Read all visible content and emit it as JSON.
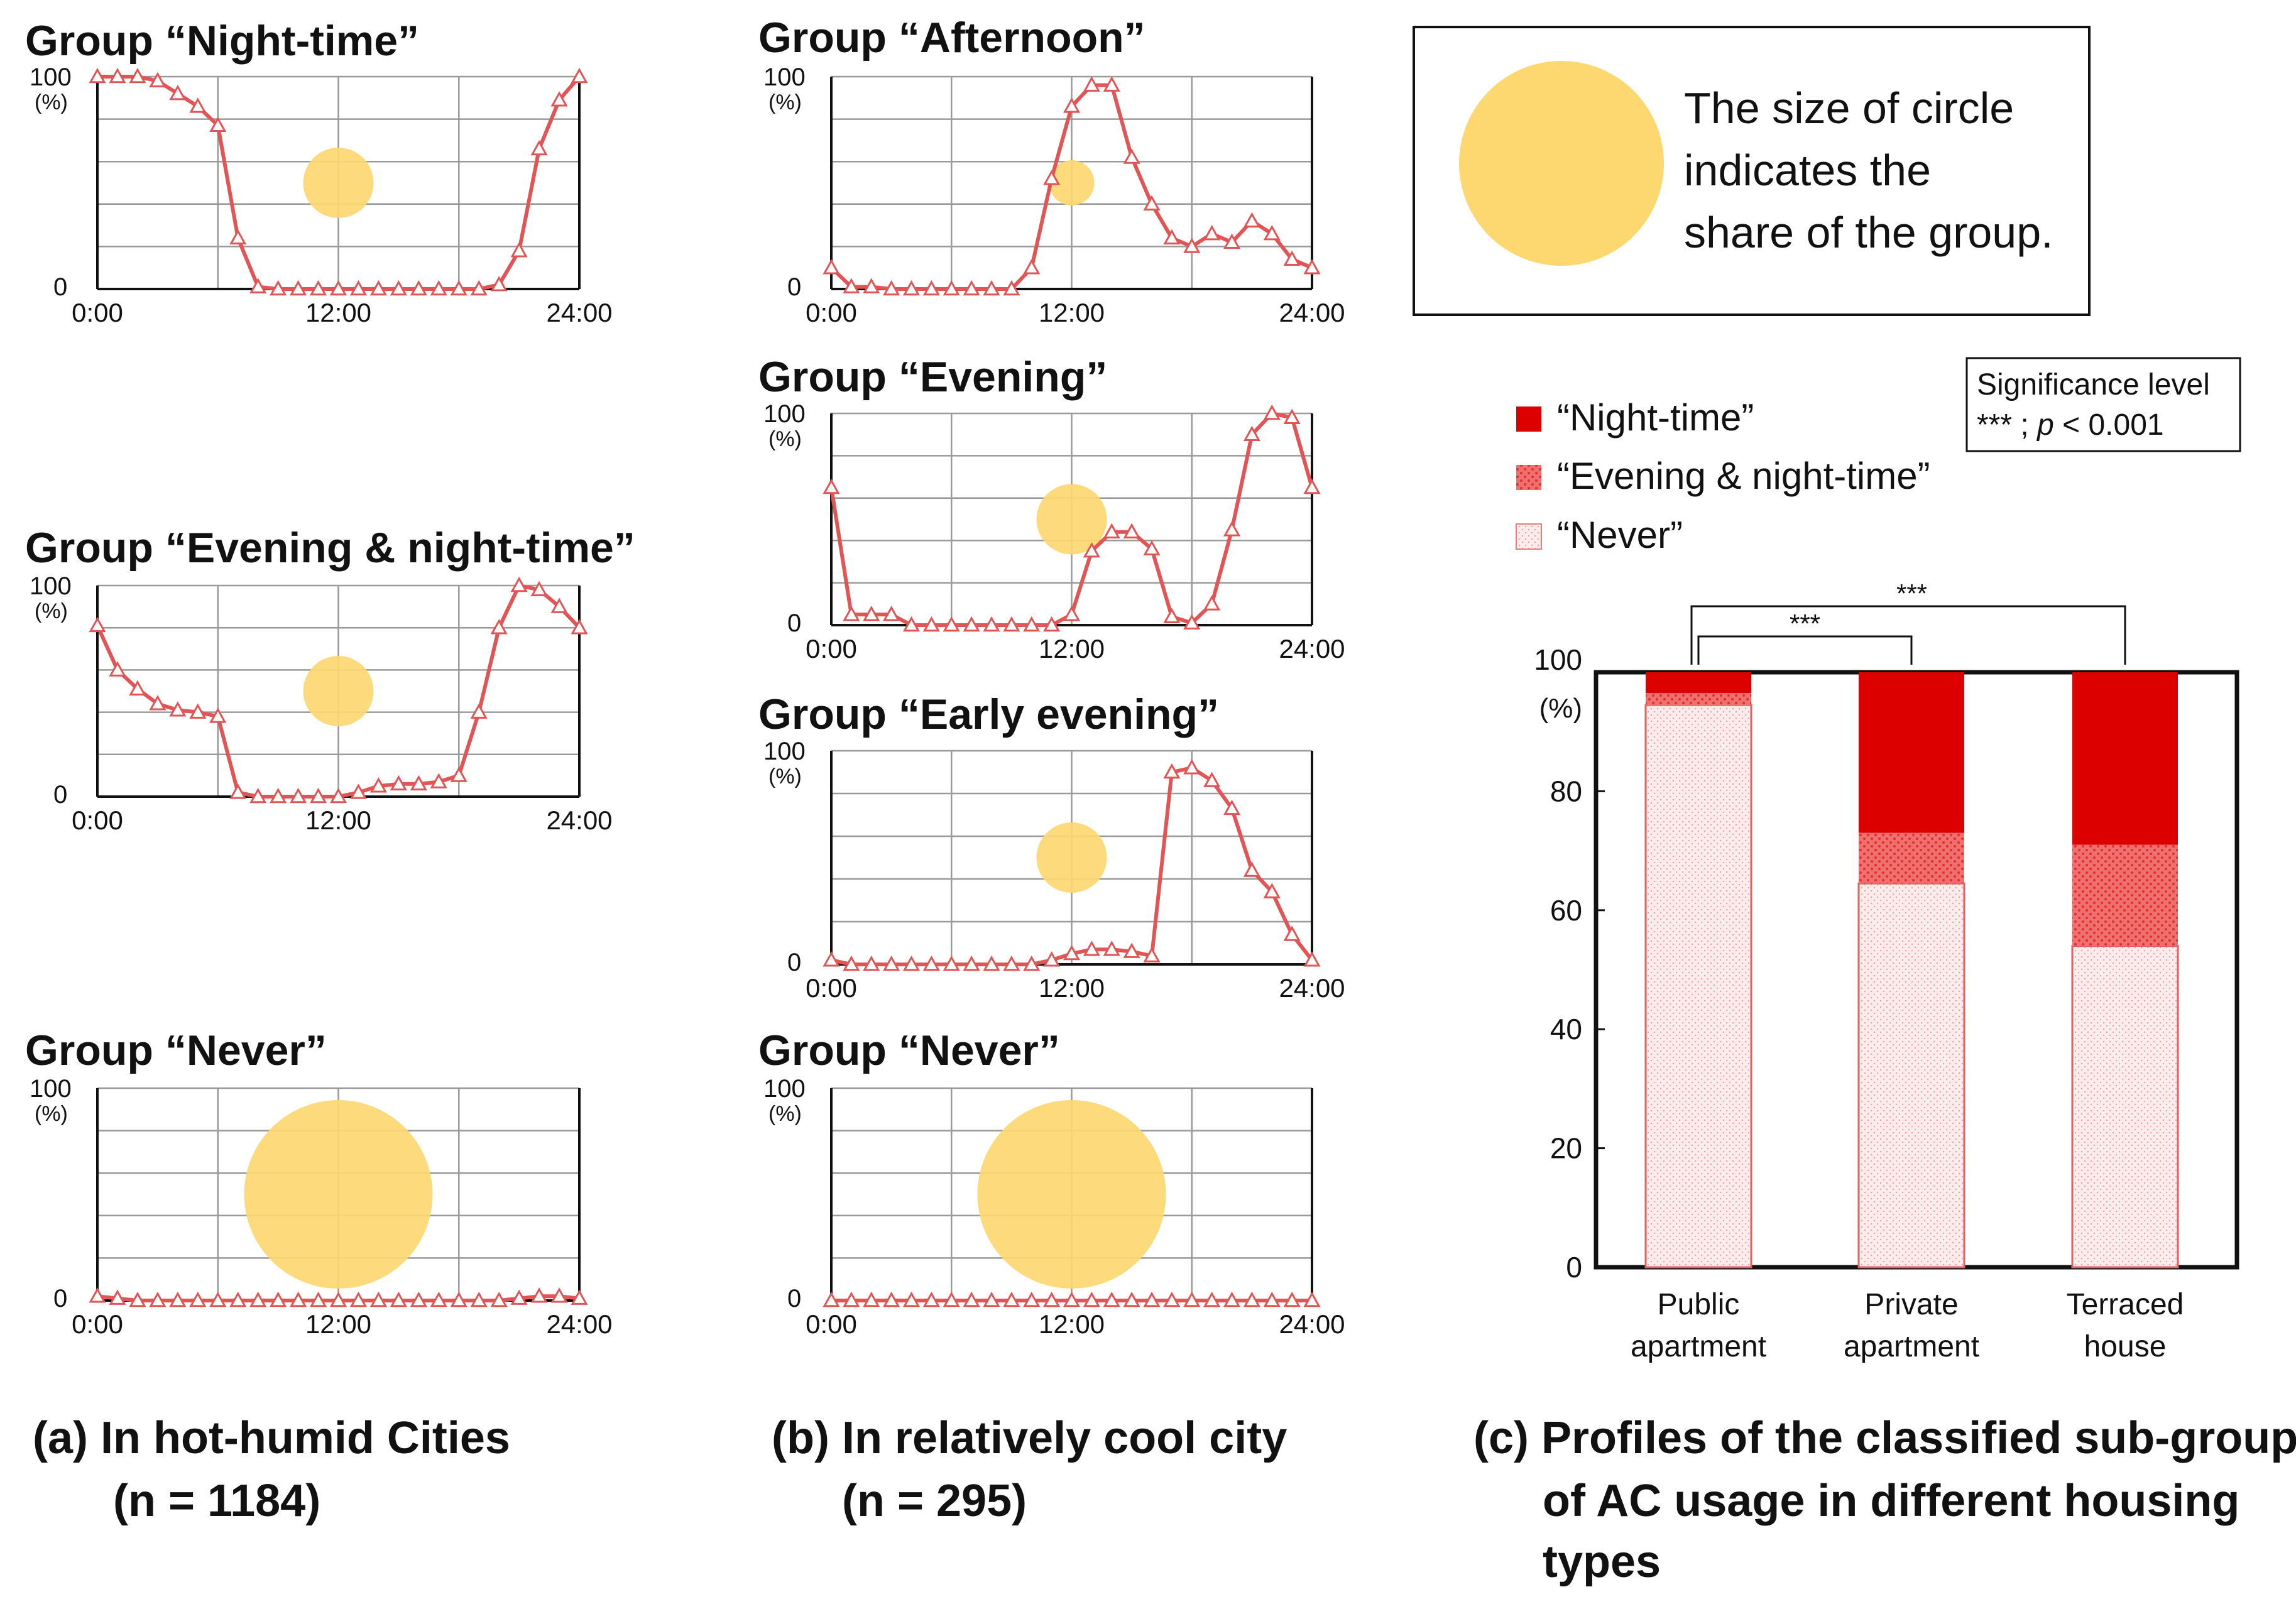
{
  "colors": {
    "line": "#e05555",
    "circle": "#fdd770",
    "night_fill": "#dd0000",
    "evening_fill": "#f07070",
    "never_fill": "#fde9e9",
    "grid": "#9a9a9a",
    "axis": "#111111"
  },
  "captions": {
    "a_line1": "(a) In hot-humid Cities",
    "a_line2": "(n = 1184)",
    "b_line1": "(b) In relatively cool city",
    "b_line2": "(n = 295)",
    "c_line1": "(c) Profiles of the classified sub-groups",
    "c_line2": "of AC usage in different housing",
    "c_line3": "types"
  },
  "legend_box": {
    "line1": "The size of circle",
    "line2": "indicates the",
    "line3": "share of the group."
  },
  "significance": {
    "title": "Significance level",
    "stars": "***",
    "sep": " ; ",
    "p": "p",
    "rest": " < 0.001",
    "bracket_label": "***"
  },
  "chart_data": [
    {
      "type": "line",
      "panel": "a",
      "title": "Group “Night-time”",
      "y_top_label": "100",
      "y_unit": "(%)",
      "y_bottom_label": "0",
      "xticks": [
        "0:00",
        "12:00",
        "24:00"
      ],
      "xlim": [
        0,
        24
      ],
      "ylim": [
        0,
        100
      ],
      "share_circle": "small",
      "x": [
        0,
        1,
        2,
        3,
        4,
        5,
        6,
        7,
        8,
        9,
        10,
        11,
        12,
        13,
        14,
        15,
        16,
        17,
        18,
        19,
        20,
        21,
        22,
        23,
        24
      ],
      "values": [
        100,
        100,
        100,
        98,
        92,
        86,
        77,
        24,
        1,
        0,
        0,
        0,
        0,
        0,
        0,
        0,
        0,
        0,
        0,
        0,
        2,
        18,
        66,
        89,
        100
      ]
    },
    {
      "type": "line",
      "panel": "a",
      "title": "Group “Evening & night-time”",
      "y_top_label": "100",
      "y_unit": "(%)",
      "y_bottom_label": "0",
      "xticks": [
        "0:00",
        "12:00",
        "24:00"
      ],
      "xlim": [
        0,
        24
      ],
      "ylim": [
        0,
        100
      ],
      "share_circle": "small",
      "x": [
        0,
        1,
        2,
        3,
        4,
        5,
        6,
        7,
        8,
        9,
        10,
        11,
        12,
        13,
        14,
        15,
        16,
        17,
        18,
        19,
        20,
        21,
        22,
        23,
        24
      ],
      "values": [
        81,
        60,
        51,
        44,
        41,
        40,
        38,
        2,
        0,
        0,
        0,
        0,
        0,
        2,
        5,
        6,
        6,
        7,
        10,
        40,
        80,
        100,
        98,
        90,
        80
      ]
    },
    {
      "type": "line",
      "panel": "a",
      "title": "Group “Never”",
      "y_top_label": "100",
      "y_unit": "(%)",
      "y_bottom_label": "0",
      "xticks": [
        "0:00",
        "12:00",
        "24:00"
      ],
      "xlim": [
        0,
        24
      ],
      "ylim": [
        0,
        100
      ],
      "share_circle": "large",
      "x": [
        0,
        1,
        2,
        3,
        4,
        5,
        6,
        7,
        8,
        9,
        10,
        11,
        12,
        13,
        14,
        15,
        16,
        17,
        18,
        19,
        20,
        21,
        22,
        23,
        24
      ],
      "values": [
        2,
        1,
        0,
        0,
        0,
        0,
        0,
        0,
        0,
        0,
        0,
        0,
        0,
        0,
        0,
        0,
        0,
        0,
        0,
        0,
        0,
        1,
        2,
        2,
        1
      ]
    },
    {
      "type": "line",
      "panel": "b",
      "title": "Group “Afternoon”",
      "y_top_label": "100",
      "y_unit": "(%)",
      "y_bottom_label": "0",
      "xticks": [
        "0:00",
        "12:00",
        "24:00"
      ],
      "xlim": [
        0,
        24
      ],
      "ylim": [
        0,
        100
      ],
      "share_circle": "tiny",
      "x": [
        0,
        1,
        2,
        3,
        4,
        5,
        6,
        7,
        8,
        9,
        10,
        11,
        12,
        13,
        14,
        15,
        16,
        17,
        18,
        19,
        20,
        21,
        22,
        23,
        24
      ],
      "values": [
        10,
        1,
        1,
        0,
        0,
        0,
        0,
        0,
        0,
        0,
        10,
        52,
        86,
        96,
        96,
        62,
        40,
        24,
        20,
        26,
        22,
        32,
        26,
        14,
        10
      ]
    },
    {
      "type": "line",
      "panel": "b",
      "title": "Group “Evening”",
      "y_top_label": "100",
      "y_unit": "(%)",
      "y_bottom_label": "0",
      "xticks": [
        "0:00",
        "12:00",
        "24:00"
      ],
      "xlim": [
        0,
        24
      ],
      "ylim": [
        0,
        100
      ],
      "share_circle": "small",
      "x": [
        0,
        1,
        2,
        3,
        4,
        5,
        6,
        7,
        8,
        9,
        10,
        11,
        12,
        13,
        14,
        15,
        16,
        17,
        18,
        19,
        20,
        21,
        22,
        23,
        24
      ],
      "values": [
        65,
        5,
        5,
        5,
        0,
        0,
        0,
        0,
        0,
        0,
        0,
        0,
        5,
        35,
        44,
        44,
        36,
        4,
        1,
        10,
        45,
        90,
        100,
        98,
        65
      ]
    },
    {
      "type": "line",
      "panel": "b",
      "title": "Group “Early evening”",
      "y_top_label": "100",
      "y_unit": "(%)",
      "y_bottom_label": "0",
      "xticks": [
        "0:00",
        "12:00",
        "24:00"
      ],
      "xlim": [
        0,
        24
      ],
      "ylim": [
        0,
        100
      ],
      "share_circle": "small",
      "x": [
        0,
        1,
        2,
        3,
        4,
        5,
        6,
        7,
        8,
        9,
        10,
        11,
        12,
        13,
        14,
        15,
        16,
        17,
        18,
        19,
        20,
        21,
        22,
        23,
        24
      ],
      "values": [
        2,
        0,
        0,
        0,
        0,
        0,
        0,
        0,
        0,
        0,
        0,
        2,
        5,
        7,
        7,
        6,
        4,
        90,
        92,
        86,
        73,
        44,
        34,
        14,
        2
      ]
    },
    {
      "type": "line",
      "panel": "b",
      "title": "Group “Never”",
      "y_top_label": "100",
      "y_unit": "(%)",
      "y_bottom_label": "0",
      "xticks": [
        "0:00",
        "12:00",
        "24:00"
      ],
      "xlim": [
        0,
        24
      ],
      "ylim": [
        0,
        100
      ],
      "share_circle": "large",
      "x": [
        0,
        1,
        2,
        3,
        4,
        5,
        6,
        7,
        8,
        9,
        10,
        11,
        12,
        13,
        14,
        15,
        16,
        17,
        18,
        19,
        20,
        21,
        22,
        23,
        24
      ],
      "values": [
        0,
        0,
        0,
        0,
        0,
        0,
        0,
        0,
        0,
        0,
        0,
        0,
        0,
        0,
        0,
        0,
        0,
        0,
        0,
        0,
        0,
        0,
        0,
        0,
        0
      ]
    },
    {
      "type": "bar",
      "panel": "c",
      "stacked": true,
      "y_unit": "(%)",
      "ylim": [
        0,
        100
      ],
      "yticks": [
        "0",
        "20",
        "40",
        "60",
        "80",
        "100"
      ],
      "categories": [
        [
          "Public",
          "apartment"
        ],
        [
          "Private",
          "apartment"
        ],
        [
          "Terraced",
          "house"
        ]
      ],
      "series": [
        {
          "name": "“Never”",
          "values": [
            94.5,
            64.5,
            54
          ]
        },
        {
          "name": "“Evening & night-time”",
          "values": [
            2.0,
            8.5,
            17
          ]
        },
        {
          "name": "“Night-time”",
          "values": [
            3.5,
            27.0,
            29
          ]
        }
      ],
      "legend_order": [
        "“Night-time”",
        "“Evening & night-time”",
        "“Never”"
      ]
    }
  ]
}
